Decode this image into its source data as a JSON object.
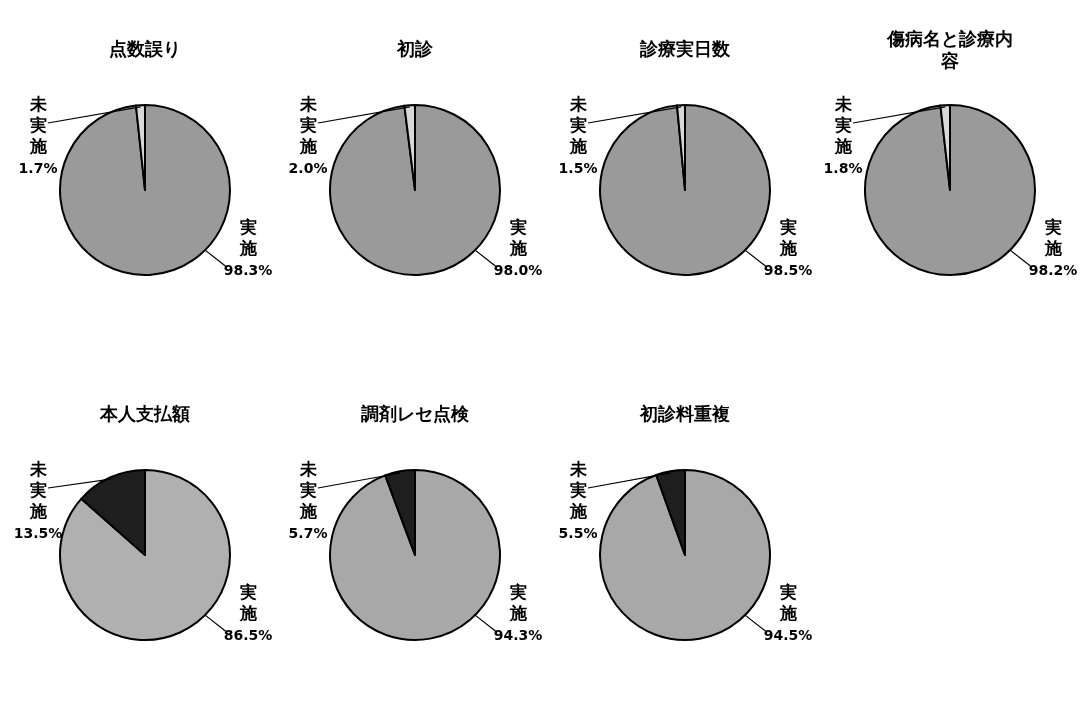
{
  "chart_data": [
    {
      "type": "pie",
      "title": "点数誤り",
      "categories": [
        "実施",
        "未実施"
      ],
      "values": [
        98.3,
        1.7
      ],
      "colors": [
        "#9a9a9a",
        "#d8d8d8"
      ],
      "value_labels": [
        "98.3%",
        "1.7%"
      ]
    },
    {
      "type": "pie",
      "title": "初診",
      "categories": [
        "実施",
        "未実施"
      ],
      "values": [
        98.0,
        2.0
      ],
      "colors": [
        "#9a9a9a",
        "#d8d8d8"
      ],
      "value_labels": [
        "98.0%",
        "2.0%"
      ]
    },
    {
      "type": "pie",
      "title": "診療実日数",
      "categories": [
        "実施",
        "未実施"
      ],
      "values": [
        98.5,
        1.5
      ],
      "colors": [
        "#9a9a9a",
        "#d8d8d8"
      ],
      "value_labels": [
        "98.5%",
        "1.5%"
      ]
    },
    {
      "type": "pie",
      "title": "傷病名と診療内容",
      "categories": [
        "実施",
        "未実施"
      ],
      "values": [
        98.2,
        1.8
      ],
      "colors": [
        "#9a9a9a",
        "#d8d8d8"
      ],
      "value_labels": [
        "98.2%",
        "1.8%"
      ]
    },
    {
      "type": "pie",
      "title": "本人支払額",
      "categories": [
        "実施",
        "未実施"
      ],
      "values": [
        86.5,
        13.5
      ],
      "colors": [
        "#b0b0b0",
        "#1e1e1e"
      ],
      "value_labels": [
        "86.5%",
        "13.5%"
      ]
    },
    {
      "type": "pie",
      "title": "調剤レセ点検",
      "categories": [
        "実施",
        "未実施"
      ],
      "values": [
        94.3,
        5.7
      ],
      "colors": [
        "#a8a8a8",
        "#1e1e1e"
      ],
      "value_labels": [
        "94.3%",
        "5.7%"
      ]
    },
    {
      "type": "pie",
      "title": "初診料重複",
      "categories": [
        "実施",
        "未実施"
      ],
      "values": [
        94.5,
        5.5
      ],
      "colors": [
        "#a8a8a8",
        "#1e1e1e"
      ],
      "value_labels": [
        "94.5%",
        "5.5%"
      ]
    }
  ]
}
